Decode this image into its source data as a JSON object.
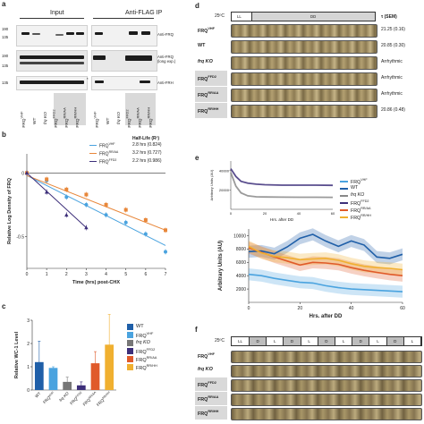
{
  "panel_a": {
    "label": "a",
    "headers": [
      "Input",
      "Anti-FLAG IP"
    ],
    "mw_markers": [
      "190",
      "135",
      "190",
      "135",
      "135"
    ],
    "blot_labels": [
      "Anti-FRQ",
      "Anti-FRQ\n(long exp.)",
      "Anti-FRH"
    ],
    "asterisk": "*",
    "lanes": [
      "FRQ",
      "WT",
      "frq KO",
      "FRQ",
      "FRQ",
      "FRQ"
    ],
    "lane_superscripts": [
      "VHF",
      "",
      "",
      "FFD2",
      "RR/AA",
      "RR/HH"
    ]
  },
  "panel_b": {
    "label": "b",
    "legend_title": "Half-Life (R²)",
    "legend": [
      {
        "name": "FRQ",
        "sup": "VHF",
        "value": "2.8 hrs (0.824)",
        "color": "#4aa3df"
      },
      {
        "name": "FRQ",
        "sup": "RR/AA",
        "value": "3.2 hrs (0.727)",
        "color": "#e8873a"
      },
      {
        "name": "FRQ",
        "sup": "FFD2",
        "value": "2.2 hrs (0.986)",
        "color": "#3d2f7a"
      }
    ],
    "ylabel": "Relative Log Density of FRQ",
    "xlabel": "Time (hrs) post-CHX",
    "yticks": [
      "0",
      "-0.5"
    ],
    "xticks": [
      "0",
      "1",
      "2",
      "3",
      "4",
      "5",
      "6",
      "7"
    ]
  },
  "panel_c": {
    "label": "c",
    "ylabel": "Relative WC-1 Level",
    "yticks": [
      "0",
      "1",
      "2",
      "3"
    ],
    "legend": [
      {
        "name": "WT",
        "sup": "",
        "color": "#1f5fa8"
      },
      {
        "name": "FRQ",
        "sup": "VHF",
        "color": "#4aa3df"
      },
      {
        "name": "frq KO",
        "sup": "",
        "color": "#777777"
      },
      {
        "name": "FRQ",
        "sup": "FFD2",
        "color": "#3d2f7a"
      },
      {
        "name": "FRQ",
        "sup": "RR/AA",
        "color": "#e05a2a"
      },
      {
        "name": "FRQ",
        "sup": "RR/HH",
        "color": "#f0b030"
      }
    ],
    "xcats": [
      "WT",
      "FRQVHF",
      "frq KO",
      "FRQFFD2",
      "FRQRR/AA",
      "FRQRR/HH"
    ]
  },
  "panel_d": {
    "label": "d",
    "temp": "25ºC",
    "ll": "LL",
    "dd": "DD",
    "tau_header": "τ (SEM)",
    "rows": [
      {
        "name": "FRQ",
        "sup": "VHF",
        "tau": "21.25 (0.16)",
        "hl": false
      },
      {
        "name": "WT",
        "sup": "",
        "tau": "20.85 (0.30)",
        "hl": false
      },
      {
        "name": "frq KO",
        "sup": "",
        "tau": "Arrhythmic",
        "hl": false
      },
      {
        "name": "FRQ",
        "sup": "FFD2",
        "tau": "Arrhythmic",
        "hl": true
      },
      {
        "name": "FRQ",
        "sup": "RR/AA",
        "tau": "Arrhythmic",
        "hl": true
      },
      {
        "name": "FRQ",
        "sup": "RR/HH",
        "tau": "20.86 (0.48)",
        "hl": true
      }
    ]
  },
  "panel_e": {
    "label": "e",
    "inset_ylabel": "Arbitrary Units (AU)",
    "inset_xlabel": "Hrs. after DD",
    "inset_yticks": [
      "40000",
      "20000"
    ],
    "inset_xticks": [
      "0",
      "20",
      "40",
      "60"
    ],
    "main_ylabel": "Arbitrary Units (AU)",
    "main_xlabel": "Hrs. after DD",
    "main_yticks": [
      "10000",
      "8000",
      "6000",
      "4000",
      "2000"
    ],
    "main_xticks": [
      "0",
      "20",
      "40",
      "60"
    ],
    "legend": [
      {
        "name": "FRQ",
        "sup": "VHF",
        "color": "#4aa3df"
      },
      {
        "name": "WT",
        "sup": "",
        "color": "#1f5fa8"
      },
      {
        "name": "frq KO",
        "sup": "",
        "color": "#888888"
      },
      {
        "name": "FRQ",
        "sup": "FFD2",
        "color": "#3d2f7a"
      },
      {
        "name": "FRQ",
        "sup": "RR/AA",
        "color": "#e05a2a"
      },
      {
        "name": "FRQ",
        "sup": "RR/HH",
        "color": "#f0b030"
      }
    ]
  },
  "panel_f": {
    "label": "f",
    "temp": "25ºC",
    "segments": [
      "LL",
      "D",
      "L",
      "D",
      "L",
      "D",
      "L",
      "D",
      "L",
      "D",
      "L"
    ],
    "rows": [
      {
        "name": "FRQ",
        "sup": "VHF",
        "hl": false
      },
      {
        "name": "frq KO",
        "sup": "",
        "hl": false
      },
      {
        "name": "FRQ",
        "sup": "FFD2",
        "hl": true
      },
      {
        "name": "FRQ",
        "sup": "RR/AA",
        "hl": true
      },
      {
        "name": "FRQ",
        "sup": "RR/HH",
        "hl": true
      }
    ]
  },
  "chart_data": [
    {
      "type": "scatter",
      "title": "",
      "xlabel": "Time (hrs) post-CHX",
      "ylabel": "Relative Log Density of FRQ",
      "xlim": [
        0,
        7
      ],
      "ylim": [
        -0.75,
        0.15
      ],
      "series": [
        {
          "name": "FRQVHF",
          "color": "#4aa3df",
          "x": [
            0,
            1,
            2,
            3,
            4,
            5,
            6,
            7
          ],
          "y": [
            0.0,
            -0.06,
            -0.19,
            -0.25,
            -0.33,
            -0.39,
            -0.48,
            -0.62
          ],
          "fit": [
            [
              0,
              -0.02
            ],
            [
              7,
              -0.57
            ]
          ]
        },
        {
          "name": "FRQRR/AA",
          "color": "#e8873a",
          "x": [
            0,
            1,
            2,
            3,
            4,
            5,
            6,
            7
          ],
          "y": [
            0.0,
            -0.05,
            -0.13,
            -0.17,
            -0.25,
            -0.29,
            -0.37,
            -0.45
          ],
          "fit": [
            [
              0,
              -0.02
            ],
            [
              7,
              -0.45
            ]
          ]
        },
        {
          "name": "FRQFFD2",
          "color": "#3d2f7a",
          "x": [
            0,
            1,
            2,
            3
          ],
          "y": [
            0.0,
            -0.15,
            -0.33,
            -0.43
          ],
          "fit": [
            [
              0,
              0.0
            ],
            [
              3,
              -0.43
            ]
          ]
        }
      ]
    },
    {
      "type": "bar",
      "ylabel": "Relative WC-1 Level",
      "ylim": [
        0,
        3
      ],
      "categories": [
        "WT",
        "FRQVHF",
        "frq KO",
        "FRQFFD2",
        "FRQRR/AA",
        "FRQRR/HH"
      ],
      "values": [
        1.2,
        0.95,
        0.35,
        0.2,
        1.15,
        1.95
      ],
      "errors": [
        0.9,
        0.05,
        0.2,
        0.15,
        0.5,
        1.3
      ],
      "colors": [
        "#1f5fa8",
        "#4aa3df",
        "#777777",
        "#3d2f7a",
        "#e05a2a",
        "#f0b030"
      ]
    },
    {
      "type": "line",
      "xlabel": "Hrs. after DD",
      "ylabel": "Arbitrary Units (AU)",
      "xlim": [
        0,
        60
      ],
      "ylim": [
        0,
        50000
      ],
      "series": [
        {
          "name": "FRQFFD2",
          "color": "#3d2f7a",
          "x": [
            0,
            3,
            6,
            10,
            15,
            20,
            30,
            40,
            50,
            60
          ],
          "y": [
            42000,
            34000,
            29000,
            27000,
            26000,
            25500,
            25000,
            25000,
            25000,
            24800
          ]
        },
        {
          "name": "frq KO",
          "color": "#888888",
          "x": [
            0,
            3,
            6,
            10,
            15,
            20,
            30,
            40,
            50,
            60
          ],
          "y": [
            38000,
            24000,
            17000,
            14000,
            13000,
            12800,
            12600,
            12500,
            12500,
            12400
          ]
        }
      ]
    },
    {
      "type": "line",
      "xlabel": "Hrs. after DD",
      "ylabel": "Arbitrary Units (AU)",
      "xlim": [
        0,
        60
      ],
      "ylim": [
        0,
        11000
      ],
      "series": [
        {
          "name": "FRQVHF",
          "color": "#4aa3df",
          "x": [
            0,
            5,
            10,
            15,
            20,
            25,
            30,
            35,
            40,
            45,
            50,
            55,
            60
          ],
          "y": [
            4200,
            4000,
            3600,
            3300,
            3000,
            2900,
            2500,
            2200,
            2000,
            1900,
            1800,
            1700,
            1600
          ]
        },
        {
          "name": "WT",
          "color": "#1f5fa8",
          "x": [
            0,
            5,
            10,
            15,
            20,
            25,
            30,
            35,
            40,
            45,
            50,
            55,
            60
          ],
          "y": [
            7600,
            7700,
            7300,
            8300,
            9600,
            10200,
            9200,
            8400,
            9200,
            8600,
            6800,
            6600,
            7200
          ]
        },
        {
          "name": "FRQRR/AA",
          "color": "#e05a2a",
          "x": [
            0,
            5,
            10,
            15,
            20,
            25,
            30,
            35,
            40,
            45,
            50,
            55,
            60
          ],
          "y": [
            8200,
            7500,
            6800,
            6200,
            5600,
            6000,
            5900,
            5700,
            5200,
            4800,
            4500,
            4200,
            4000
          ]
        },
        {
          "name": "FRQRR/HH",
          "color": "#f0b030",
          "x": [
            0,
            5,
            10,
            15,
            20,
            25,
            30,
            35,
            40,
            45,
            50,
            55,
            60
          ],
          "y": [
            8400,
            7400,
            6900,
            6700,
            6400,
            6500,
            6600,
            6300,
            5800,
            5400,
            5200,
            5100,
            4900
          ]
        }
      ]
    }
  ]
}
